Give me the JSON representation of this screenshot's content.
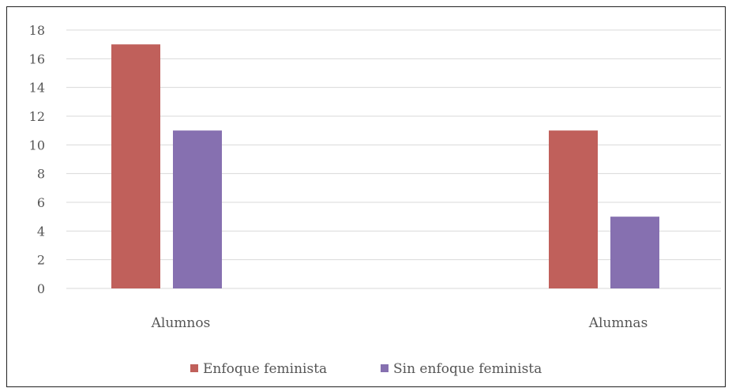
{
  "chart_data": {
    "type": "bar",
    "categories": [
      "Alumnos",
      "Alumnas"
    ],
    "series": [
      {
        "name": "Enfoque feminista",
        "values": [
          17,
          11
        ],
        "color": "#c0605b"
      },
      {
        "name": "Sin enfoque feminista",
        "values": [
          11,
          5
        ],
        "color": "#8670b0"
      }
    ],
    "ylim": [
      0,
      18
    ],
    "yticks": [
      "0",
      "2",
      "4",
      "6",
      "8",
      "10",
      "12",
      "14",
      "16",
      "18"
    ],
    "grid": true,
    "legend_position": "bottom"
  }
}
